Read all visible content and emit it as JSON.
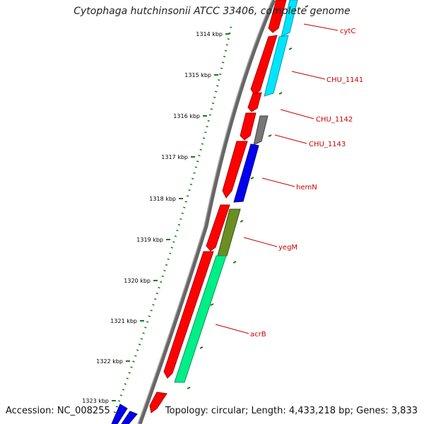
{
  "title": "Cytophaga hutchinsonii ATCC 33406, complete genome",
  "footer": {
    "accession": "Accession: NC_008255",
    "topology": "Topology: circular; Length: 4,433,218 bp; Genes: 3,833"
  },
  "ticks": [
    "1314 kbp",
    "1315 kbp",
    "1316 kbp",
    "1317 kbp",
    "1318 kbp",
    "1319 kbp",
    "1320 kbp",
    "1321 kbp",
    "1322 kbp",
    "1323 kbp"
  ],
  "genes": [
    "cytC",
    "CHU_1141",
    "CHU_1142",
    "CHU_1143",
    "hemN",
    "yegM",
    "acrB"
  ],
  "colors": {
    "forward_cds": "#ff0000",
    "backbone": "#888888",
    "tick": "#1a7a1a",
    "cyan": "#00e5ff",
    "gray": "#777777",
    "blue": "#0000ee",
    "olive": "#6b8e23",
    "spring_green": "#00ee88",
    "label": "#cc0000"
  }
}
